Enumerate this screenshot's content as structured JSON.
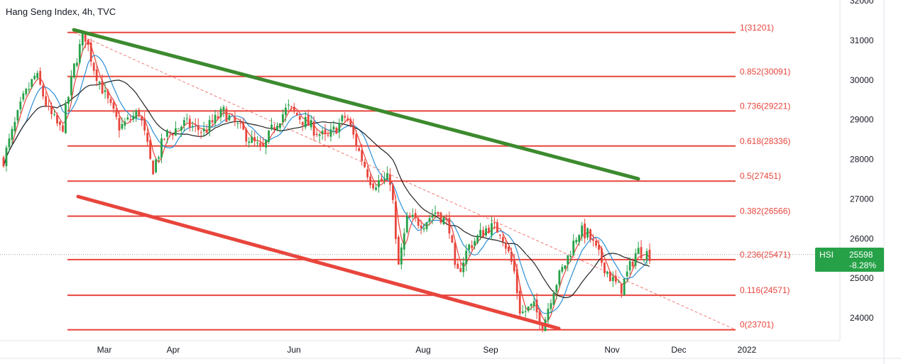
{
  "chart_data": {
    "type": "candlestick",
    "title": "Hang Seng Index, 4h, TVC",
    "y_ticks": [
      "32000",
      "31000",
      "30000",
      "29000",
      "28000",
      "27000",
      "26000",
      "25000",
      "24000"
    ],
    "ylim": [
      23500,
      32000
    ],
    "x_ticks": [
      "Mar",
      "Apr",
      "Jun",
      "Aug",
      "Sep",
      "Nov",
      "Dec",
      "2022"
    ],
    "fib_levels": [
      {
        "label": "1(31201)",
        "value": 31201
      },
      {
        "label": "0.852(30091)",
        "value": 30091
      },
      {
        "label": "0.736(29221)",
        "value": 29221
      },
      {
        "label": "0.618(28336)",
        "value": 28336
      },
      {
        "label": "0.5(27451)",
        "value": 27451
      },
      {
        "label": "0.382(26566)",
        "value": 26566
      },
      {
        "label": "0.236(25471)",
        "value": 25471
      },
      {
        "label": "0.116(24571)",
        "value": 24571
      },
      {
        "label": "0(23701)",
        "value": 23701
      }
    ],
    "trendlines": [
      {
        "name": "upper",
        "color": "#3c8a2e",
        "points": [
          [
            "late Feb",
            31201
          ],
          [
            "early Dec",
            27450
          ]
        ]
      },
      {
        "name": "lower",
        "color": "#e8453c",
        "points": [
          [
            "late Feb",
            27040
          ],
          [
            "early Oct",
            23700
          ]
        ]
      }
    ],
    "price_path": [
      [
        0,
        28000
      ],
      [
        0.03,
        29500
      ],
      [
        0.05,
        30150
      ],
      [
        0.07,
        29200
      ],
      [
        0.09,
        28700
      ],
      [
        0.11,
        30400
      ],
      [
        0.125,
        31201
      ],
      [
        0.14,
        30300
      ],
      [
        0.16,
        29500
      ],
      [
        0.18,
        28800
      ],
      [
        0.21,
        29200
      ],
      [
        0.22,
        28500
      ],
      [
        0.23,
        27700
      ],
      [
        0.25,
        28600
      ],
      [
        0.28,
        28900
      ],
      [
        0.31,
        28700
      ],
      [
        0.34,
        29200
      ],
      [
        0.37,
        28700
      ],
      [
        0.4,
        28200
      ],
      [
        0.42,
        28900
      ],
      [
        0.44,
        29300
      ],
      [
        0.47,
        28900
      ],
      [
        0.5,
        28500
      ],
      [
        0.53,
        29100
      ],
      [
        0.55,
        28200
      ],
      [
        0.57,
        27400
      ],
      [
        0.6,
        27500
      ],
      [
        0.61,
        25200
      ],
      [
        0.625,
        26500
      ],
      [
        0.65,
        26400
      ],
      [
        0.67,
        26700
      ],
      [
        0.69,
        26300
      ],
      [
        0.7,
        25000
      ],
      [
        0.72,
        25800
      ],
      [
        0.75,
        26300
      ],
      [
        0.77,
        26200
      ],
      [
        0.79,
        25200
      ],
      [
        0.8,
        24100
      ],
      [
        0.82,
        24300
      ],
      [
        0.835,
        23800
      ],
      [
        0.85,
        24700
      ],
      [
        0.87,
        25400
      ],
      [
        0.89,
        26200
      ],
      [
        0.905,
        26100
      ],
      [
        0.92,
        25600
      ],
      [
        0.94,
        25000
      ],
      [
        0.955,
        24700
      ],
      [
        0.97,
        25300
      ],
      [
        0.98,
        25700
      ],
      [
        1.0,
        25598
      ]
    ],
    "last_price": {
      "symbol": "HSI",
      "value": "25598",
      "change": "-8.28%",
      "color": "#26a148"
    },
    "colors": {
      "fib": "#e8453c",
      "upper_trend": "#3c8a2e",
      "lower_trend": "#e8453c",
      "up": "#26a148",
      "down": "#e8453c"
    }
  }
}
